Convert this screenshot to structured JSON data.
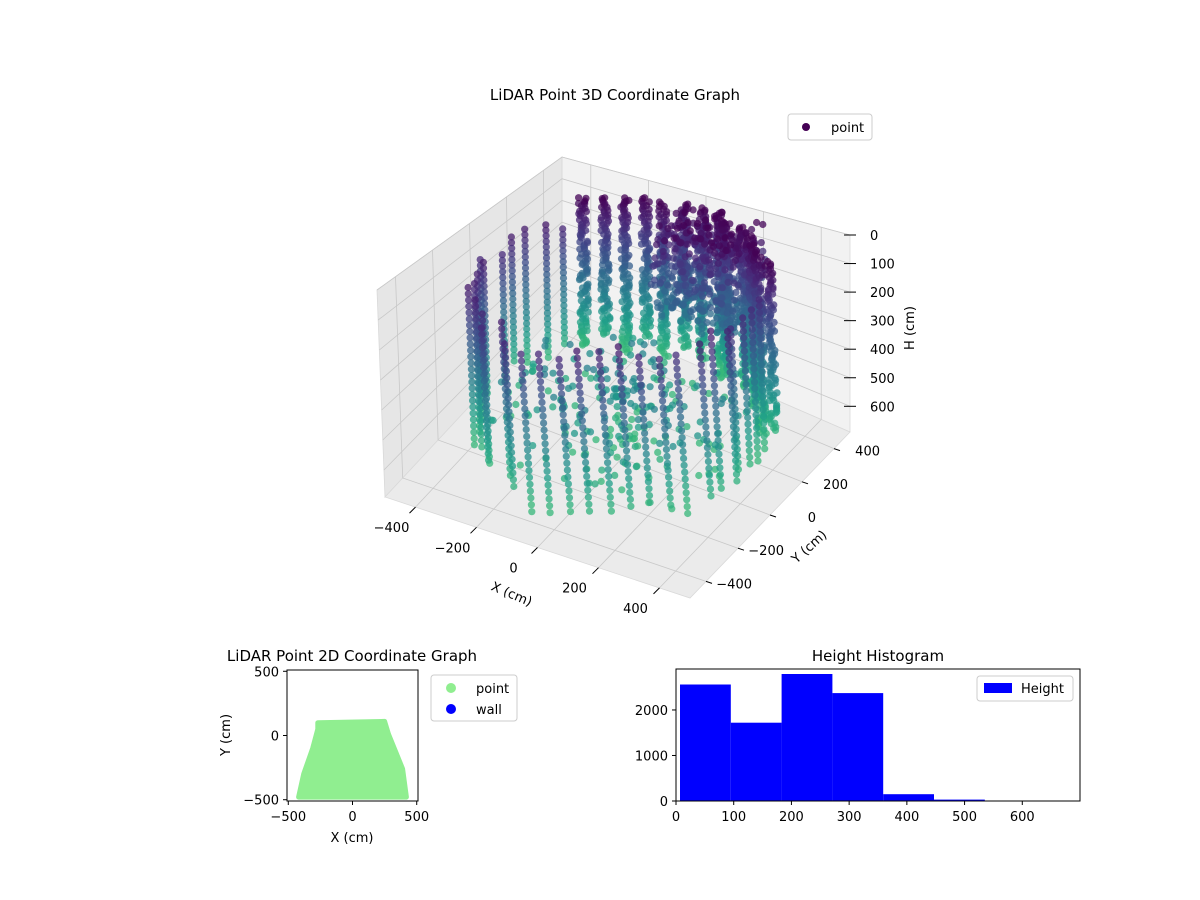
{
  "chart_data": [
    {
      "type": "scatter",
      "title": "LiDAR Point 3D Coordinate Graph",
      "xlabel": "X (cm)",
      "ylabel": "Y (cm)",
      "zlabel": "H (cm)",
      "xticks": [
        -400,
        -200,
        0,
        200,
        400
      ],
      "yticks": [
        -400,
        -200,
        0,
        200,
        400
      ],
      "zticks": [
        0,
        100,
        200,
        300,
        400,
        500,
        600
      ],
      "xlim": [
        -500,
        500
      ],
      "ylim": [
        -500,
        500
      ],
      "zlim": [
        0,
        690
      ],
      "z_inverted": true,
      "colormap": "viridis",
      "grid": true,
      "legend": {
        "placement": "top-right",
        "entries": [
          {
            "label": "point",
            "color": "#440154"
          }
        ]
      },
      "series": [
        {
          "name": "point",
          "shape": "ring wall, radius about 380-460, heights 0-600"
        }
      ]
    },
    {
      "type": "scatter",
      "title": "LiDAR Point 2D Coordinate Graph",
      "xlabel": "X (cm)",
      "ylabel": "Y (cm)",
      "xticks": [
        -500,
        0,
        500
      ],
      "yticks": [
        500,
        0,
        -500
      ],
      "xlim": [
        -510,
        510
      ],
      "ylim": [
        -510,
        510
      ],
      "grid": false,
      "legend": {
        "placement": "outside right",
        "entries": [
          {
            "label": "point",
            "color": "#90ee90"
          },
          {
            "label": "wall",
            "color": "#0000ff"
          }
        ]
      },
      "series": [
        {
          "name": "point",
          "color": "#90ee90",
          "outline": [
            [
              -270,
              100
            ],
            [
              250,
              110
            ],
            [
              280,
              10
            ],
            [
              390,
              -260
            ],
            [
              420,
              -480
            ],
            [
              -420,
              -480
            ],
            [
              -380,
              -300
            ],
            [
              -310,
              -100
            ],
            [
              -270,
              50
            ]
          ]
        },
        {
          "name": "wall",
          "color": "#0000ff",
          "x": [],
          "y": []
        }
      ]
    },
    {
      "type": "bar",
      "title": "Height Histogram",
      "xticks": [
        0,
        100,
        200,
        300,
        400,
        500,
        600
      ],
      "yticks": [
        0,
        1000,
        2000
      ],
      "xlim": [
        0,
        700
      ],
      "ylim": [
        0,
        2900
      ],
      "grid": false,
      "legend": {
        "placement": "top-right",
        "entries": [
          {
            "label": "Height",
            "color": "#0000ff"
          }
        ]
      },
      "bins": [
        {
          "x0": 7,
          "x1": 95,
          "count": 2560
        },
        {
          "x0": 95,
          "x1": 183,
          "count": 1720
        },
        {
          "x0": 183,
          "x1": 271,
          "count": 2790
        },
        {
          "x0": 271,
          "x1": 359,
          "count": 2370
        },
        {
          "x0": 359,
          "x1": 447,
          "count": 150
        },
        {
          "x0": 447,
          "x1": 535,
          "count": 30
        },
        {
          "x0": 535,
          "x1": 623,
          "count": 5
        },
        {
          "x0": 623,
          "x1": 690,
          "count": 2
        }
      ]
    }
  ]
}
